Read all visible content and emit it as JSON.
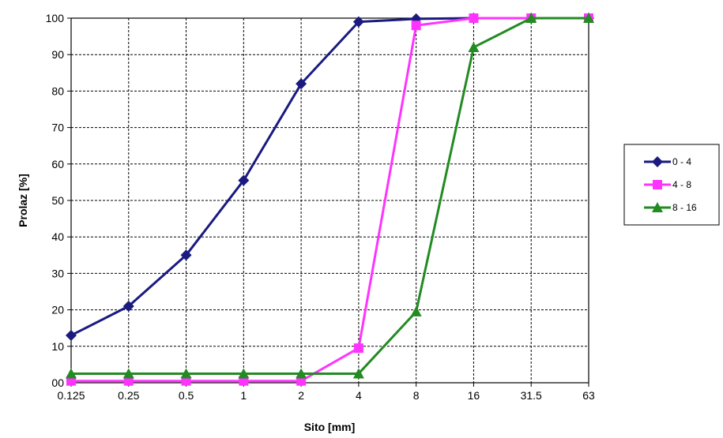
{
  "chart_data": {
    "type": "line",
    "xlabel": "Sito [mm]",
    "ylabel": "Prolaz [%]",
    "categories": [
      "0.125",
      "0.25",
      "0.5",
      "1",
      "2",
      "4",
      "8",
      "16",
      "31.5",
      "63"
    ],
    "y_ticks": [
      "00",
      "10",
      "20",
      "30",
      "40",
      "50",
      "60",
      "70",
      "80",
      "90",
      "100"
    ],
    "ylim": [
      0,
      100
    ],
    "grid": true,
    "legend_position": "right",
    "series": [
      {
        "name": "0 - 4",
        "color": "#1a1a80",
        "marker": "diamond",
        "values": [
          13,
          21,
          35,
          55.5,
          82,
          99,
          99.8,
          100,
          100,
          100
        ]
      },
      {
        "name": "4 - 8",
        "color": "#ff33ff",
        "marker": "square",
        "values": [
          0.5,
          0.5,
          0.5,
          0.5,
          0.5,
          9.5,
          98,
          100,
          100,
          100
        ]
      },
      {
        "name": "8 - 16",
        "color": "#228b22",
        "marker": "triangle",
        "values": [
          2.5,
          2.5,
          2.5,
          2.5,
          2.5,
          2.5,
          19.5,
          92,
          100,
          100
        ]
      }
    ]
  }
}
